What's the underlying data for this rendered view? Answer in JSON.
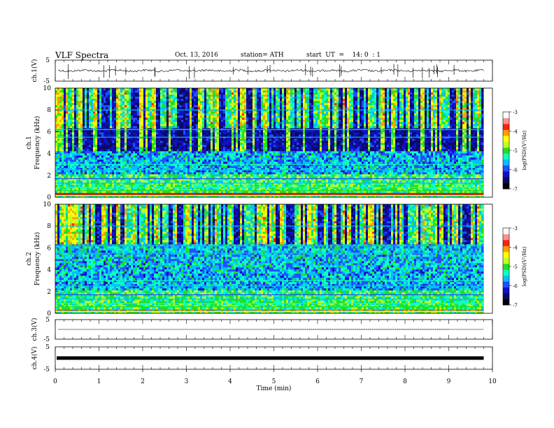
{
  "header": {
    "title": "VLF  Spectra",
    "date": "Oct. 13, 2016",
    "station": "station= ATH",
    "start": "start  UT  =    14: 0  : 1"
  },
  "colorbar": {
    "label": "log(PSD)(V²/Hz)",
    "ticks": [
      "-3",
      "-4",
      "-5",
      "-6",
      "-7"
    ],
    "colors": [
      "#000000",
      "#0a0a60",
      "#1010c8",
      "#2050ff",
      "#00c0ff",
      "#10ffc0",
      "#20e020",
      "#c0ff20",
      "#ffff00",
      "#ffa000",
      "#ff2010",
      "#ff9090",
      "#ffffff"
    ]
  },
  "chart_data": [
    {
      "type": "line",
      "name": "ch1-waveform",
      "ylabel": "ch.1(V)",
      "yticks": [
        "5",
        "-5"
      ],
      "ylim": [
        -5,
        5
      ],
      "xlim": [
        0,
        10
      ],
      "series_extent_min": [
        0,
        9.8
      ],
      "baseline": 0.0
    },
    {
      "type": "heatmap",
      "name": "ch1-spectrogram",
      "ylabel": "ch.1\nFrequency  (kHz)",
      "ylim": [
        0,
        10
      ],
      "yticks": [
        "10",
        "8",
        "6",
        "4",
        "2",
        "0"
      ],
      "xlim": [
        0,
        10
      ],
      "zlim": [
        -7,
        -3
      ],
      "zlabel": "log(PSD)(V²/Hz)"
    },
    {
      "type": "heatmap",
      "name": "ch2-spectrogram",
      "ylabel": "ch.2\nFrequency  (kHz)",
      "ylim": [
        0,
        10
      ],
      "yticks": [
        "10",
        "8",
        "6",
        "4",
        "2",
        "0"
      ],
      "xlim": [
        0,
        10
      ],
      "zlim": [
        -7,
        -3
      ],
      "zlabel": "log(PSD)(V²/Hz)"
    },
    {
      "type": "line",
      "name": "ch3-waveform",
      "ylabel": "ch.3(V)",
      "yticks": [
        "5",
        "-5"
      ],
      "ylim": [
        -5,
        5
      ],
      "xlim": [
        0,
        10
      ],
      "baseline": 0.0
    },
    {
      "type": "line",
      "name": "ch4-waveform",
      "ylabel": "ch.4(V)",
      "yticks": [
        "5",
        "-5"
      ],
      "ylim": [
        -5,
        5
      ],
      "xlim": [
        0,
        10
      ],
      "baseline": 0.0,
      "xlabel": "Time  (min)",
      "xticks": [
        "0",
        "1",
        "2",
        "3",
        "4",
        "5",
        "6",
        "7",
        "8",
        "9",
        "10"
      ]
    }
  ]
}
